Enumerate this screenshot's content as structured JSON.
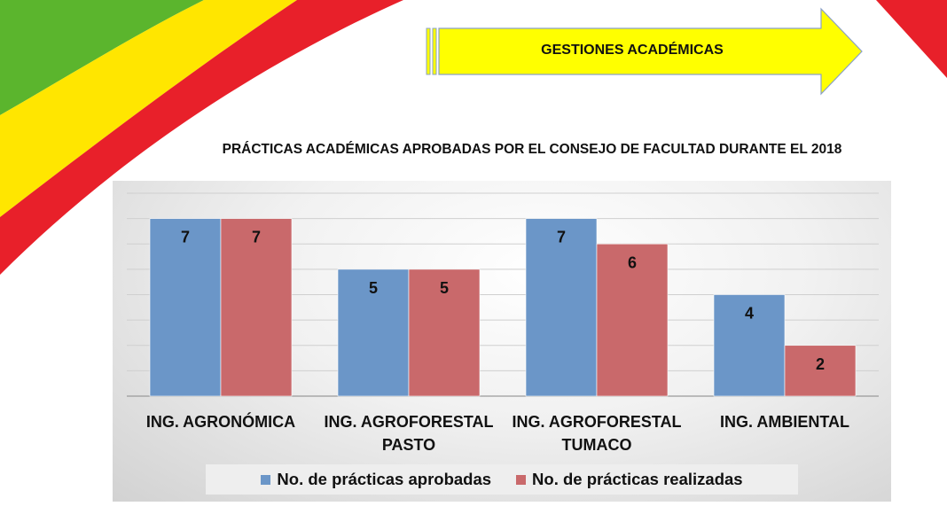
{
  "header": {
    "banner_text": "GESTIONES ACADÉMICAS"
  },
  "colors": {
    "banner_fill": "#ffff00",
    "banner_stroke": "#8aa0c6",
    "ribbon_green": "#5bb52d",
    "ribbon_yellow": "#ffe600",
    "ribbon_red": "#e8202a",
    "series_aprobadas": "#6b96c8",
    "series_realizadas": "#c9696b"
  },
  "chart_data": {
    "type": "bar",
    "title": "PRÁCTICAS ACADÉMICAS APROBADAS POR EL CONSEJO DE FACULTAD DURANTE EL 2018",
    "categories": [
      [
        "ING. AGRONÓMICA"
      ],
      [
        "ING. AGROFORESTAL",
        "PASTO"
      ],
      [
        "ING. AGROFORESTAL",
        "TUMACO"
      ],
      [
        "ING. AMBIENTAL"
      ]
    ],
    "series": [
      {
        "name": "No. de prácticas aprobadas",
        "values": [
          7,
          5,
          7,
          4
        ]
      },
      {
        "name": "No. de  prácticas realizadas",
        "values": [
          7,
          5,
          6,
          2
        ]
      }
    ],
    "ylim": [
      0,
      8
    ],
    "grid": true,
    "legend": "bottom"
  }
}
